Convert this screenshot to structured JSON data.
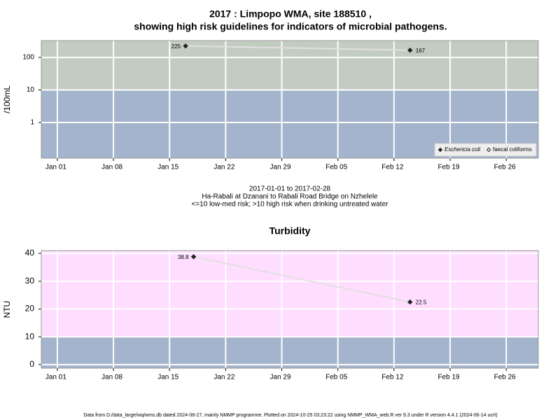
{
  "chart_data": [
    {
      "type": "line",
      "title": "2017 : Limpopo WMA, site 188510 ,",
      "subtitle": "showing high risk guidelines for indicators of microbial pathogens.",
      "ylabel": "/100mL",
      "log_scale": true,
      "grid": true,
      "threshold": 10,
      "band_colors": {
        "above": "#c3ccc1",
        "below": "#a3b4cc"
      },
      "x": [
        "2017-01-17",
        "2017-02-14"
      ],
      "xlim": [
        "2016-12-30",
        "2017-03-02"
      ],
      "xticks": [
        {
          "value": "2017-01-01",
          "label": "Jan 01"
        },
        {
          "value": "2017-01-08",
          "label": "Jan 08"
        },
        {
          "value": "2017-01-15",
          "label": "Jan 15"
        },
        {
          "value": "2017-01-22",
          "label": "Jan 22"
        },
        {
          "value": "2017-01-29",
          "label": "Jan 29"
        },
        {
          "value": "2017-02-05",
          "label": "Feb 05"
        },
        {
          "value": "2017-02-12",
          "label": "Feb 12"
        },
        {
          "value": "2017-02-19",
          "label": "Feb 19"
        },
        {
          "value": "2017-02-26",
          "label": "Feb 26"
        }
      ],
      "ylim": [
        0.08,
        330
      ],
      "yticks": [
        1,
        10,
        100
      ],
      "series": [
        {
          "name": "Eschericia coli",
          "color": "#222222",
          "marker": "filled",
          "values": [
            225,
            167
          ]
        },
        {
          "name": "faecal coliforms",
          "color": "#222222",
          "marker": "open",
          "values": [
            null,
            null
          ]
        }
      ],
      "legend": "bottom-right",
      "caption": [
        "2017-01-01 to 2017-02-28",
        "Ha-Rabali at Dzanani to Rabali Road Bridge on Nzhelele",
        "<=10 low-med risk; >10 high risk when drinking untreated water"
      ]
    },
    {
      "type": "line",
      "title": "Turbidity",
      "ylabel": "NTU",
      "log_scale": false,
      "grid": true,
      "threshold": 10,
      "band_colors": {
        "above": "#ffddff",
        "below": "#a3b4cc"
      },
      "x": [
        "2017-01-18",
        "2017-02-14"
      ],
      "xlim": [
        "2016-12-30",
        "2017-03-02"
      ],
      "xticks": [
        {
          "value": "2017-01-01",
          "label": "Jan 01"
        },
        {
          "value": "2017-01-08",
          "label": "Jan 08"
        },
        {
          "value": "2017-01-15",
          "label": "Jan 15"
        },
        {
          "value": "2017-01-22",
          "label": "Jan 22"
        },
        {
          "value": "2017-01-29",
          "label": "Jan 29"
        },
        {
          "value": "2017-02-05",
          "label": "Feb 05"
        },
        {
          "value": "2017-02-12",
          "label": "Feb 12"
        },
        {
          "value": "2017-02-19",
          "label": "Feb 19"
        },
        {
          "value": "2017-02-26",
          "label": "Feb 26"
        }
      ],
      "ylim": [
        -1.3,
        41
      ],
      "yticks": [
        0,
        10,
        20,
        30,
        40
      ],
      "series": [
        {
          "name": "Turbidity",
          "color": "#222222",
          "marker": "filled",
          "values": [
            38.8,
            22.5
          ]
        }
      ]
    }
  ],
  "footer": "Data from D:/data_large/wq/wms.db dated 2024-08-27, mainly NMMP programme. Plotted on 2024-10-25 03:23:22 using NMMP_WMA_web.R ver 9.3 under R version 4.4.1 (2024-06-14 ucrt)"
}
